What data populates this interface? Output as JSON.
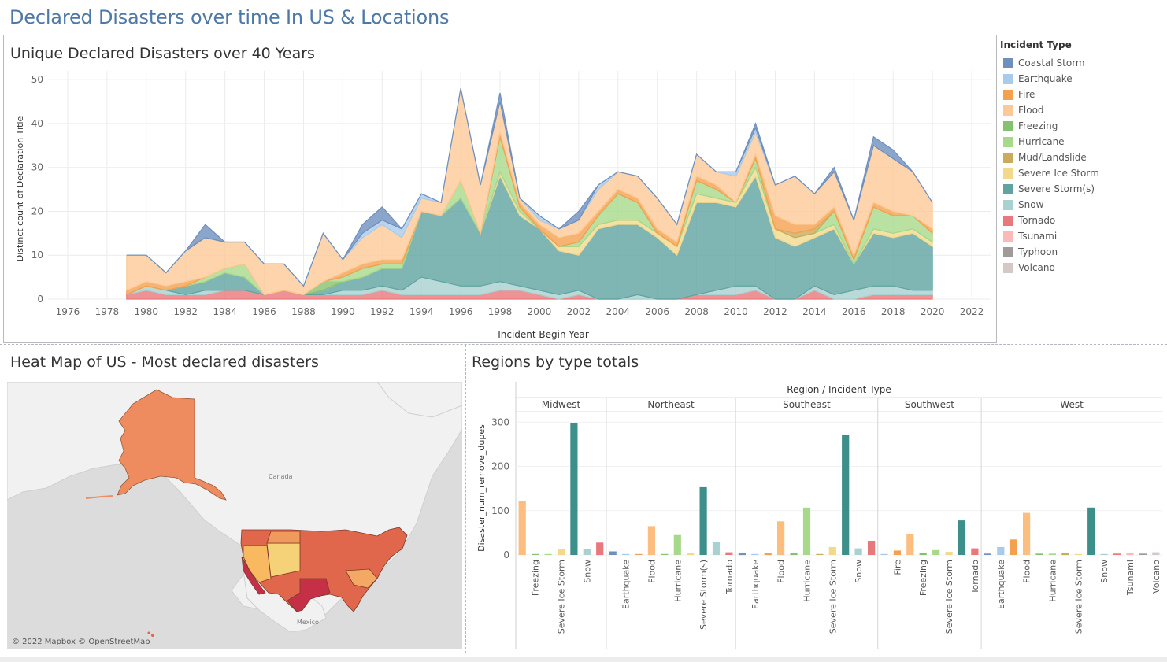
{
  "dashboard_title": "Declared Disasters over time In US & Locations",
  "top_chart_title": "Unique Declared Disasters over 40 Years",
  "map_title": "Heat Map of US - Most declared disasters",
  "bar_chart_title": "Regions by type totals",
  "legend": {
    "title": "Incident Type",
    "items": [
      {
        "label": "Coastal Storm",
        "color": "#6f8fbd"
      },
      {
        "label": "Earthquake",
        "color": "#a9cbe9"
      },
      {
        "label": "Fire",
        "color": "#f5a04e"
      },
      {
        "label": "Flood",
        "color": "#fcc996"
      },
      {
        "label": "Freezing",
        "color": "#86c16f"
      },
      {
        "label": "Hurricane",
        "color": "#a8d98b"
      },
      {
        "label": "Mud/Landslide",
        "color": "#c9ac5b"
      },
      {
        "label": "Severe Ice Storm",
        "color": "#f3d98c"
      },
      {
        "label": "Severe Storm(s)",
        "color": "#5fa4a0"
      },
      {
        "label": "Snow",
        "color": "#a9d1cf"
      },
      {
        "label": "Tornado",
        "color": "#e8787c"
      },
      {
        "label": "Tsunami",
        "color": "#fbb9b7"
      },
      {
        "label": "Typhoon",
        "color": "#a09b99"
      },
      {
        "label": "Volcano",
        "color": "#d4c9c6"
      }
    ]
  },
  "map": {
    "credit": "© 2022 Mapbox © OpenStreetMap",
    "labels": [
      "Canada",
      "Mexico"
    ]
  },
  "chart_data": [
    {
      "type": "area",
      "title": "Unique Declared Disasters over 40 Years",
      "xlabel": "Incident Begin Year",
      "ylabel": "Distinct count of Declaration Title",
      "xlim": [
        1975,
        2023
      ],
      "ylim": [
        0,
        52
      ],
      "x_ticks": [
        1976,
        1978,
        1980,
        1982,
        1984,
        1986,
        1988,
        1990,
        1992,
        1994,
        1996,
        1998,
        2000,
        2002,
        2004,
        2006,
        2008,
        2010,
        2012,
        2014,
        2016,
        2018,
        2020,
        2022
      ],
      "y_ticks": [
        0,
        10,
        20,
        30,
        40,
        50
      ],
      "grid": true,
      "x": [
        1979,
        1980,
        1981,
        1982,
        1983,
        1984,
        1985,
        1986,
        1987,
        1988,
        1989,
        1990,
        1991,
        1992,
        1993,
        1994,
        1995,
        1996,
        1997,
        1998,
        1999,
        2000,
        2001,
        2002,
        2003,
        2004,
        2005,
        2006,
        2007,
        2008,
        2009,
        2010,
        2011,
        2012,
        2013,
        2014,
        2015,
        2016,
        2017,
        2018,
        2019,
        2020
      ],
      "series": [
        {
          "name": "Tornado",
          "values": [
            1,
            2,
            1,
            1,
            1,
            2,
            2,
            1,
            2,
            1,
            1,
            1,
            1,
            2,
            1,
            1,
            1,
            1,
            1,
            2,
            2,
            1,
            0,
            1,
            0,
            0,
            0,
            0,
            0,
            1,
            1,
            1,
            2,
            0,
            0,
            2,
            0,
            0,
            1,
            1,
            1,
            1
          ]
        },
        {
          "name": "Snow",
          "values": [
            0,
            1,
            1,
            0,
            1,
            0,
            0,
            0,
            0,
            0,
            0,
            1,
            1,
            1,
            1,
            4,
            3,
            2,
            2,
            2,
            1,
            1,
            1,
            1,
            0,
            0,
            1,
            0,
            0,
            0,
            1,
            2,
            1,
            0,
            0,
            1,
            1,
            2,
            2,
            2,
            1,
            1
          ]
        },
        {
          "name": "Severe Storm(s)",
          "values": [
            0,
            0,
            0,
            2,
            2,
            4,
            3,
            0,
            0,
            0,
            1,
            2,
            3,
            4,
            5,
            15,
            15,
            20,
            12,
            24,
            16,
            14,
            10,
            8,
            16,
            17,
            16,
            14,
            10,
            21,
            20,
            18,
            25,
            14,
            12,
            11,
            15,
            6,
            12,
            11,
            13,
            10
          ]
        },
        {
          "name": "Severe Ice Storm",
          "values": [
            0,
            0,
            0,
            0,
            0,
            0,
            0,
            0,
            0,
            0,
            0,
            0,
            0,
            0,
            0,
            0,
            0,
            0,
            0,
            1,
            1,
            0,
            1,
            2,
            1,
            1,
            1,
            1,
            2,
            2,
            1,
            1,
            2,
            2,
            2,
            1,
            1,
            0,
            1,
            1,
            1,
            1
          ]
        },
        {
          "name": "Freezing",
          "values": [
            0,
            0,
            0,
            0,
            0,
            0,
            0,
            0,
            0,
            0,
            2,
            0,
            0,
            0,
            0,
            0,
            0,
            0,
            0,
            0,
            0,
            0,
            0,
            0,
            0,
            0,
            0,
            0,
            0,
            0,
            0,
            0,
            0,
            0,
            0,
            0,
            0,
            0,
            0,
            0,
            0,
            0
          ]
        },
        {
          "name": "Hurricane",
          "values": [
            0,
            0,
            0,
            0,
            1,
            1,
            3,
            0,
            0,
            0,
            0,
            1,
            2,
            1,
            1,
            0,
            0,
            4,
            0,
            8,
            1,
            0,
            0,
            1,
            2,
            6,
            4,
            0,
            0,
            3,
            2,
            0,
            2,
            0,
            0,
            0,
            3,
            1,
            5,
            4,
            3,
            2
          ]
        },
        {
          "name": "Mud/Landslide",
          "values": [
            0,
            0,
            0,
            0,
            0,
            0,
            0,
            0,
            0,
            0,
            0,
            0,
            0,
            0,
            0,
            0,
            0,
            0,
            0,
            0,
            0,
            0,
            0,
            0,
            0,
            0,
            0,
            0,
            0,
            0,
            0,
            0,
            0,
            0,
            1,
            1,
            0,
            0,
            0,
            0,
            0,
            0
          ]
        },
        {
          "name": "Fire",
          "values": [
            1,
            1,
            1,
            1,
            0,
            0,
            0,
            0,
            0,
            0,
            0,
            1,
            1,
            1,
            1,
            0,
            0,
            0,
            0,
            1,
            1,
            1,
            2,
            2,
            1,
            1,
            1,
            1,
            1,
            1,
            1,
            0,
            1,
            3,
            2,
            1,
            1,
            1,
            1,
            1,
            0,
            1
          ]
        },
        {
          "name": "Flood",
          "values": [
            8,
            6,
            3,
            7,
            9,
            6,
            5,
            7,
            6,
            2,
            11,
            3,
            6,
            8,
            5,
            3,
            3,
            21,
            11,
            7,
            1,
            1,
            2,
            3,
            5,
            4,
            5,
            7,
            4,
            5,
            3,
            6,
            5,
            7,
            11,
            7,
            8,
            8,
            13,
            12,
            10,
            6
          ]
        },
        {
          "name": "Earthquake",
          "values": [
            0,
            0,
            0,
            0,
            0,
            0,
            0,
            0,
            0,
            0,
            0,
            0,
            1,
            1,
            2,
            1,
            0,
            0,
            0,
            0,
            0,
            1,
            0,
            0,
            1,
            0,
            0,
            0,
            0,
            0,
            0,
            1,
            1,
            0,
            0,
            0,
            0,
            0,
            0,
            0,
            0,
            0
          ]
        },
        {
          "name": "Coastal Storm",
          "values": [
            0,
            0,
            0,
            0,
            3,
            0,
            0,
            0,
            0,
            0,
            0,
            0,
            2,
            3,
            0,
            0,
            0,
            0,
            0,
            2,
            0,
            0,
            0,
            2,
            0,
            0,
            0,
            0,
            0,
            0,
            0,
            0,
            1,
            0,
            0,
            0,
            1,
            0,
            2,
            2,
            0,
            0
          ]
        }
      ]
    },
    {
      "type": "bar",
      "title": "Regions by type totals",
      "header": "Region / Incident Type",
      "ylabel": "Disaster_num_remove_dupes",
      "ylim": [
        0,
        320
      ],
      "y_ticks": [
        0,
        100,
        200,
        300
      ],
      "regions": [
        {
          "name": "Midwest",
          "bars": [
            {
              "type": "Flood",
              "value": 122
            },
            {
              "type": "Freezing",
              "value": 2
            },
            {
              "type": "Hurricane",
              "value": 2
            },
            {
              "type": "Severe Ice Storm",
              "value": 13
            },
            {
              "type": "Severe Storm(s)",
              "value": 297
            },
            {
              "type": "Snow",
              "value": 13
            },
            {
              "type": "Tornado",
              "value": 28
            }
          ],
          "labels": [
            "",
            "Freezing",
            "",
            "Severe Ice Storm",
            "",
            "Snow",
            ""
          ]
        },
        {
          "name": "Northeast",
          "bars": [
            {
              "type": "Coastal Storm",
              "value": 8
            },
            {
              "type": "Earthquake",
              "value": 2
            },
            {
              "type": "Fire",
              "value": 2
            },
            {
              "type": "Flood",
              "value": 65
            },
            {
              "type": "Freezing",
              "value": 2
            },
            {
              "type": "Hurricane",
              "value": 45
            },
            {
              "type": "Severe Ice Storm",
              "value": 5
            },
            {
              "type": "Severe Storm(s)",
              "value": 153
            },
            {
              "type": "Snow",
              "value": 30
            },
            {
              "type": "Tornado",
              "value": 6
            }
          ],
          "labels": [
            "",
            "Earthquake",
            "",
            "Flood",
            "",
            "Hurricane",
            "",
            "Severe Storm(s)",
            "",
            "Tornado"
          ]
        },
        {
          "name": "Southeast",
          "bars": [
            {
              "type": "Coastal Storm",
              "value": 4
            },
            {
              "type": "Earthquake",
              "value": 2
            },
            {
              "type": "Fire",
              "value": 4
            },
            {
              "type": "Flood",
              "value": 76
            },
            {
              "type": "Freezing",
              "value": 4
            },
            {
              "type": "Hurricane",
              "value": 107
            },
            {
              "type": "Mud/Landslide",
              "value": 2
            },
            {
              "type": "Severe Ice Storm",
              "value": 18
            },
            {
              "type": "Severe Storm(s)",
              "value": 271
            },
            {
              "type": "Snow",
              "value": 15
            },
            {
              "type": "Tornado",
              "value": 32
            }
          ],
          "labels": [
            "",
            "Earthquake",
            "",
            "Flood",
            "",
            "Hurricane",
            "",
            "Severe Ice Storm",
            "",
            "Snow",
            ""
          ]
        },
        {
          "name": "Southwest",
          "bars": [
            {
              "type": "Earthquake",
              "value": 2
            },
            {
              "type": "Fire",
              "value": 10
            },
            {
              "type": "Flood",
              "value": 48
            },
            {
              "type": "Freezing",
              "value": 4
            },
            {
              "type": "Hurricane",
              "value": 11
            },
            {
              "type": "Severe Ice Storm",
              "value": 7
            },
            {
              "type": "Severe Storm(s)",
              "value": 78
            },
            {
              "type": "Tornado",
              "value": 15
            }
          ],
          "labels": [
            "",
            "Fire",
            "",
            "Freezing",
            "",
            "Severe Ice Storm",
            "",
            "Tornado"
          ]
        },
        {
          "name": "West",
          "bars": [
            {
              "type": "Coastal Storm",
              "value": 3
            },
            {
              "type": "Earthquake",
              "value": 18
            },
            {
              "type": "Fire",
              "value": 35
            },
            {
              "type": "Flood",
              "value": 95
            },
            {
              "type": "Freezing",
              "value": 3
            },
            {
              "type": "Hurricane",
              "value": 3
            },
            {
              "type": "Mud/Landslide",
              "value": 4
            },
            {
              "type": "Severe Ice Storm",
              "value": 2
            },
            {
              "type": "Severe Storm(s)",
              "value": 107
            },
            {
              "type": "Snow",
              "value": 2
            },
            {
              "type": "Tornado",
              "value": 3
            },
            {
              "type": "Tsunami",
              "value": 4
            },
            {
              "type": "Typhoon",
              "value": 3
            },
            {
              "type": "Volcano",
              "value": 6
            }
          ],
          "labels": [
            "",
            "Earthquake",
            "",
            "Flood",
            "",
            "Hurricane",
            "",
            "Severe Ice Storm",
            "",
            "Snow",
            "",
            "Tsunami",
            "",
            "Volcano"
          ]
        }
      ]
    }
  ]
}
